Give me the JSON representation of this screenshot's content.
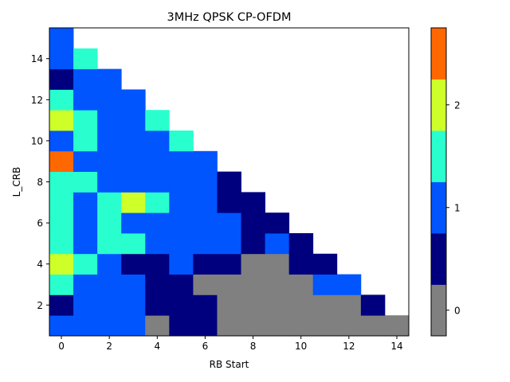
{
  "chart_data": {
    "type": "heatmap",
    "title": "3MHz QPSK CP-OFDM",
    "xlabel": "RB Start",
    "ylabel": "L_CRB",
    "xlim": [
      -0.5,
      14.5
    ],
    "ylim": [
      0.5,
      15.5
    ],
    "x_ticks": [
      0,
      2,
      4,
      6,
      8,
      10,
      12,
      14
    ],
    "y_ticks": [
      2,
      4,
      6,
      8,
      10,
      12,
      14
    ],
    "x_tick_labels": [
      "0",
      "2",
      "4",
      "6",
      "8",
      "10",
      "12",
      "14"
    ],
    "y_tick_labels": [
      "2",
      "4",
      "6",
      "8",
      "10",
      "12",
      "14"
    ],
    "grid": false,
    "colorbar": {
      "levels": [
        -0.25,
        0.25,
        0.75,
        1.25,
        1.75,
        2.25,
        2.75
      ],
      "colors": [
        "#808080",
        "#00007f",
        "#0055ff",
        "#29ffce",
        "#ceff29",
        "#ff6800"
      ],
      "ticks": [
        0,
        1,
        2
      ],
      "tick_labels": [
        "0",
        "1",
        "2"
      ]
    },
    "rows_l_crb": [
      1,
      2,
      3,
      4,
      5,
      6,
      7,
      8,
      9,
      10,
      11,
      12,
      13,
      14,
      15
    ],
    "z_by_l_crb": [
      [
        1,
        1,
        1,
        1,
        0,
        0.5,
        0.5,
        0,
        0,
        0,
        0,
        0,
        0,
        0,
        0
      ],
      [
        0.5,
        1,
        1,
        1,
        0.5,
        0.5,
        0.5,
        0,
        0,
        0,
        0,
        0,
        0,
        0.5
      ],
      [
        1.5,
        1,
        1,
        1,
        0.5,
        0.5,
        0,
        0,
        0,
        0,
        0,
        1,
        1
      ],
      [
        2,
        1.5,
        1,
        0.5,
        0.5,
        1,
        0.5,
        0.5,
        0,
        0,
        0.5,
        0.5
      ],
      [
        1.5,
        1,
        1.5,
        1.5,
        1,
        1,
        1,
        1,
        0.5,
        1,
        0.5
      ],
      [
        1.5,
        1,
        1.5,
        1,
        1,
        1,
        1,
        1,
        0.5,
        0.5
      ],
      [
        1.5,
        1,
        1.5,
        2,
        1.5,
        1,
        1,
        0.5,
        0.5
      ],
      [
        1.5,
        1.5,
        1,
        1,
        1,
        1,
        1,
        0.5
      ],
      [
        2.5,
        1,
        1,
        1,
        1,
        1,
        1
      ],
      [
        1,
        1.5,
        1,
        1,
        1,
        1.5
      ],
      [
        2,
        1.5,
        1,
        1,
        1.5
      ],
      [
        1.5,
        1,
        1,
        1
      ],
      [
        0.5,
        1,
        1
      ],
      [
        1,
        1.5
      ],
      [
        1
      ]
    ]
  }
}
